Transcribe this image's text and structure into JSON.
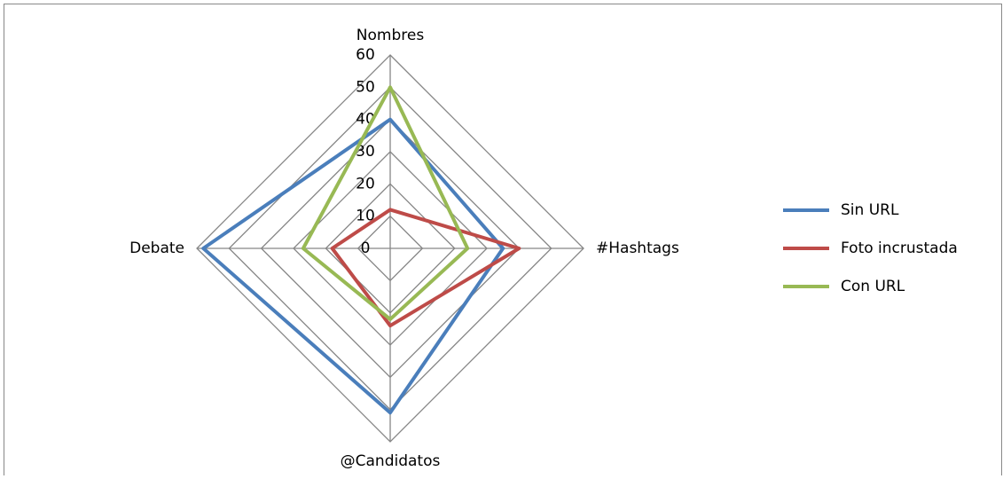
{
  "chart_data": {
    "type": "radar",
    "categories": [
      "Nombres",
      "#Hashtags",
      "@Candidatos",
      "Debate"
    ],
    "series": [
      {
        "name": "Sin URL",
        "color": "#4a7ebb",
        "values": [
          40,
          35,
          51,
          58
        ]
      },
      {
        "name": "Foto incrustada",
        "color": "#be4b48",
        "values": [
          12,
          40,
          24,
          18
        ]
      },
      {
        "name": "Con URL",
        "color": "#98b954",
        "values": [
          50,
          24,
          22,
          27
        ]
      }
    ],
    "ylim": [
      0,
      60
    ],
    "yticks": [
      0,
      10,
      20,
      30,
      40,
      50,
      60
    ],
    "grid": true,
    "legend": "right"
  }
}
